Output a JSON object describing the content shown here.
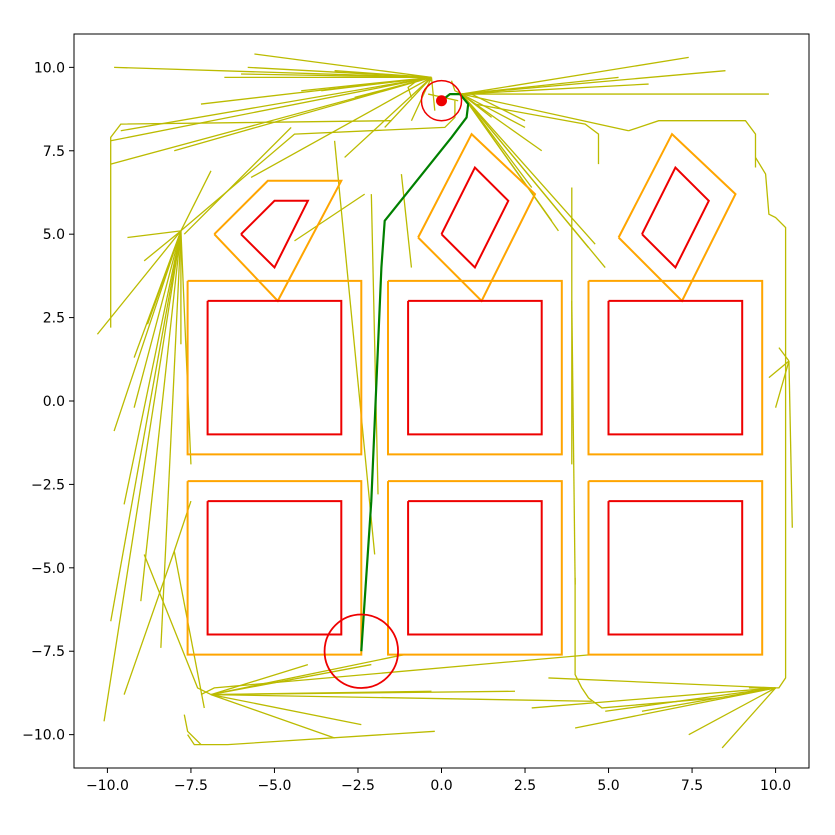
{
  "chart_data": {
    "type": "line",
    "title": "",
    "xlabel": "",
    "ylabel": "",
    "xlim": [
      -11,
      11
    ],
    "ylim": [
      -11,
      11
    ],
    "grid": false,
    "x_ticks": [
      -10,
      -7.5,
      -5,
      -2.5,
      0,
      2.5,
      5,
      7.5,
      10
    ],
    "y_ticks": [
      -10,
      -7.5,
      -5,
      -2.5,
      0,
      2.5,
      5,
      7.5,
      10
    ],
    "x_tick_labels": [
      "−10.0",
      "−7.5",
      "−5.0",
      "−2.5",
      "0.0",
      "2.5",
      "5.0",
      "7.5",
      "10.0"
    ],
    "y_tick_labels": [
      "−10.0",
      "−7.5",
      "−5.0",
      "−2.5",
      "0.0",
      "2.5",
      "5.0",
      "7.5",
      "10.0"
    ],
    "colors": {
      "obstacle": "#ee0000",
      "inflated": "#ffa500",
      "tree": "#bbbb00",
      "path": "#008000",
      "marker": "#ee0000"
    },
    "obstacles": [
      [
        [
          -7,
          3
        ],
        [
          -3,
          3
        ],
        [
          -3,
          -1
        ],
        [
          -7,
          -1
        ],
        [
          -7,
          3
        ]
      ],
      [
        [
          -1,
          3
        ],
        [
          3,
          3
        ],
        [
          3,
          -1
        ],
        [
          -1,
          -1
        ],
        [
          -1,
          3
        ]
      ],
      [
        [
          5,
          3
        ],
        [
          9,
          3
        ],
        [
          9,
          -1
        ],
        [
          5,
          -1
        ],
        [
          5,
          3
        ]
      ],
      [
        [
          -7,
          -3
        ],
        [
          -3,
          -3
        ],
        [
          -3,
          -7
        ],
        [
          -7,
          -7
        ],
        [
          -7,
          -3
        ]
      ],
      [
        [
          -1,
          -3
        ],
        [
          3,
          -3
        ],
        [
          3,
          -7
        ],
        [
          -1,
          -7
        ],
        [
          -1,
          -3
        ]
      ],
      [
        [
          5,
          -3
        ],
        [
          9,
          -3
        ],
        [
          9,
          -7
        ],
        [
          5,
          -7
        ],
        [
          5,
          -3
        ]
      ],
      [
        [
          -6,
          5
        ],
        [
          -5,
          6
        ],
        [
          -4,
          6
        ],
        [
          -5,
          4
        ],
        [
          -6,
          5
        ]
      ],
      [
        [
          0,
          5
        ],
        [
          1,
          7
        ],
        [
          2,
          6
        ],
        [
          1,
          4
        ],
        [
          0,
          5
        ]
      ],
      [
        [
          6,
          5
        ],
        [
          7,
          7
        ],
        [
          8,
          6
        ],
        [
          7,
          4
        ],
        [
          6,
          5
        ]
      ]
    ],
    "inflated_obstacles": [
      [
        [
          -7.6,
          3.6
        ],
        [
          -2.4,
          3.6
        ],
        [
          -2.4,
          -1.6
        ],
        [
          -7.6,
          -1.6
        ],
        [
          -7.6,
          3.6
        ]
      ],
      [
        [
          -1.6,
          3.6
        ],
        [
          3.6,
          3.6
        ],
        [
          3.6,
          -1.6
        ],
        [
          -1.6,
          -1.6
        ],
        [
          -1.6,
          3.6
        ]
      ],
      [
        [
          4.4,
          3.6
        ],
        [
          9.6,
          3.6
        ],
        [
          9.6,
          -1.6
        ],
        [
          4.4,
          -1.6
        ],
        [
          4.4,
          3.6
        ]
      ],
      [
        [
          -7.6,
          -2.4
        ],
        [
          -2.4,
          -2.4
        ],
        [
          -2.4,
          -7.6
        ],
        [
          -7.6,
          -7.6
        ],
        [
          -7.6,
          -2.4
        ]
      ],
      [
        [
          -1.6,
          -2.4
        ],
        [
          3.6,
          -2.4
        ],
        [
          3.6,
          -7.6
        ],
        [
          -1.6,
          -7.6
        ],
        [
          -1.6,
          -2.4
        ]
      ],
      [
        [
          4.4,
          -2.4
        ],
        [
          9.6,
          -2.4
        ],
        [
          9.6,
          -7.6
        ],
        [
          4.4,
          -7.6
        ],
        [
          4.4,
          -2.4
        ]
      ],
      [
        [
          -6.8,
          5
        ],
        [
          -5.2,
          6.6
        ],
        [
          -3,
          6.6
        ],
        [
          -4.9,
          3
        ],
        [
          -6.8,
          5
        ]
      ],
      [
        [
          -0.7,
          4.9
        ],
        [
          0.9,
          8
        ],
        [
          2.8,
          6.2
        ],
        [
          1.2,
          3
        ],
        [
          -0.7,
          4.9
        ]
      ],
      [
        [
          5.3,
          4.9
        ],
        [
          6.9,
          8
        ],
        [
          8.8,
          6.2
        ],
        [
          7.2,
          3
        ],
        [
          5.3,
          4.9
        ]
      ]
    ],
    "start": {
      "x": 0,
      "y": 9,
      "radius": 0.6
    },
    "goal": {
      "x": -2.4,
      "y": -7.5,
      "radius": 1.1
    },
    "path": [
      [
        0,
        9
      ],
      [
        0.25,
        9.2
      ],
      [
        0.55,
        9.2
      ],
      [
        0.8,
        8.9
      ],
      [
        0.75,
        8.5
      ],
      [
        0.3,
        7.9
      ],
      [
        -1.7,
        5.4
      ],
      [
        -1.8,
        4
      ],
      [
        -2.1,
        -3
      ],
      [
        -2.4,
        -7.5
      ]
    ],
    "tree": [
      [
        [
          -0.3,
          9.7
        ],
        [
          -9.8,
          10
        ]
      ],
      [
        [
          -0.3,
          9.7
        ],
        [
          -7.2,
          8.9
        ]
      ],
      [
        [
          -0.3,
          9.7
        ],
        [
          -9.9,
          7.8
        ]
      ],
      [
        [
          -0.3,
          9.7
        ],
        [
          -9.9,
          7.1
        ]
      ],
      [
        [
          -0.3,
          9.7
        ],
        [
          -8,
          7.5
        ]
      ],
      [
        [
          -0.3,
          9.7
        ],
        [
          -5.7,
          6.7
        ]
      ],
      [
        [
          -0.3,
          9.7
        ],
        [
          -2.9,
          7.3
        ]
      ],
      [
        [
          -0.3,
          9.7
        ],
        [
          -0.2,
          8.7
        ]
      ],
      [
        [
          -0.3,
          9.7
        ],
        [
          -5.6,
          10.4
        ]
      ],
      [
        [
          -0.3,
          9.7
        ],
        [
          -6.5,
          9.7
        ]
      ],
      [
        [
          -0.3,
          9.7
        ],
        [
          -6,
          9.8
        ]
      ],
      [
        [
          -0.3,
          9.7
        ],
        [
          -9.6,
          8.1
        ]
      ],
      [
        [
          -0.3,
          9.7
        ],
        [
          -0.9,
          8.4
        ]
      ],
      [
        [
          -0.3,
          9.7
        ],
        [
          -4.2,
          9.3
        ]
      ],
      [
        [
          -0.3,
          9.7
        ],
        [
          -1.7,
          8.2
        ]
      ],
      [
        [
          -0.3,
          9.7
        ],
        [
          -3.6,
          9.3
        ]
      ],
      [
        [
          -0.3,
          9.7
        ],
        [
          -2.6,
          9.1
        ]
      ],
      [
        [
          -0.3,
          9.7
        ],
        [
          -5.8,
          10
        ]
      ],
      [
        [
          -0.3,
          9.7
        ],
        [
          -3.2,
          9.9
        ]
      ],
      [
        [
          0.6,
          9.2
        ],
        [
          7.4,
          10.3
        ]
      ],
      [
        [
          0.6,
          9.2
        ],
        [
          5.3,
          9.7
        ]
      ],
      [
        [
          0.6,
          9.2
        ],
        [
          8.5,
          9.9
        ]
      ],
      [
        [
          0.6,
          9.2
        ],
        [
          9.8,
          9.2
        ]
      ],
      [
        [
          0.6,
          9.2
        ],
        [
          5.6,
          8.1
        ]
      ],
      [
        [
          0.6,
          9.2
        ],
        [
          2.5,
          8.2
        ]
      ],
      [
        [
          0.6,
          9.2
        ],
        [
          2.7,
          6.4
        ]
      ],
      [
        [
          0.6,
          9.2
        ],
        [
          3.3,
          5.4
        ]
      ],
      [
        [
          0.6,
          9.2
        ],
        [
          4.6,
          4.7
        ]
      ],
      [
        [
          0.6,
          9.2
        ],
        [
          4.9,
          4
        ]
      ],
      [
        [
          0.6,
          9.2
        ],
        [
          1.5,
          8.5
        ]
      ],
      [
        [
          0.6,
          9.2
        ],
        [
          3,
          7.5
        ]
      ],
      [
        [
          0.6,
          9.2
        ],
        [
          3.5,
          5.1
        ]
      ],
      [
        [
          0.6,
          9.2
        ],
        [
          4.4,
          4.6
        ]
      ],
      [
        [
          0.6,
          9.2
        ],
        [
          6.2,
          9.5
        ]
      ],
      [
        [
          -7.8,
          5.1
        ],
        [
          -8.9,
          4.2
        ]
      ],
      [
        [
          -7.8,
          5.1
        ],
        [
          -10.3,
          2
        ]
      ],
      [
        [
          -7.8,
          5.1
        ],
        [
          -9.2,
          1.3
        ]
      ],
      [
        [
          -7.8,
          5.1
        ],
        [
          -9.8,
          -0.9
        ]
      ],
      [
        [
          -7.8,
          5.1
        ],
        [
          -9.5,
          -3.1
        ]
      ],
      [
        [
          -7.8,
          5.1
        ],
        [
          -9,
          -6
        ]
      ],
      [
        [
          -7.8,
          5.1
        ],
        [
          -9.9,
          -6.6
        ]
      ],
      [
        [
          -7.8,
          5.1
        ],
        [
          -8.4,
          -7.4
        ]
      ],
      [
        [
          -7.8,
          5.1
        ],
        [
          -7.5,
          -1.9
        ]
      ],
      [
        [
          -7.8,
          5.1
        ],
        [
          -9.2,
          -0.2
        ]
      ],
      [
        [
          -7.8,
          5.1
        ],
        [
          -10.1,
          -9.6
        ]
      ],
      [
        [
          -7.8,
          5.1
        ],
        [
          -7.8,
          1.7
        ]
      ],
      [
        [
          -7.8,
          5.1
        ],
        [
          -6.9,
          6.9
        ]
      ],
      [
        [
          -7.8,
          5.1
        ],
        [
          -9.4,
          4.9
        ]
      ],
      [
        [
          -7.8,
          5.1
        ],
        [
          -8.8,
          2.3
        ]
      ],
      [
        [
          -8,
          -4.5
        ],
        [
          -9.5,
          -8.8
        ]
      ],
      [
        [
          -8,
          -4.5
        ],
        [
          -7.1,
          -9.2
        ]
      ],
      [
        [
          -8,
          -4.5
        ],
        [
          -7.5,
          -3
        ]
      ],
      [
        [
          -6.9,
          -8.8
        ],
        [
          -4,
          -7.9
        ]
      ],
      [
        [
          -6.9,
          -8.8
        ],
        [
          2.2,
          -8.7
        ]
      ],
      [
        [
          -6.9,
          -8.8
        ],
        [
          -2.4,
          -9.7
        ]
      ],
      [
        [
          -6.9,
          -8.8
        ],
        [
          -3.2,
          -10.1
        ]
      ],
      [
        [
          -6.9,
          -8.8
        ],
        [
          4.5,
          -9
        ]
      ],
      [
        [
          -6.9,
          -8.8
        ],
        [
          -1.1,
          -7.6
        ]
      ],
      [
        [
          -6.9,
          -8.8
        ],
        [
          -0.3,
          -8.7
        ]
      ],
      [
        [
          -6.9,
          -8.8
        ],
        [
          -2.1,
          -7.9
        ]
      ],
      [
        [
          10,
          -8.6
        ],
        [
          6,
          -9.3
        ]
      ],
      [
        [
          10,
          -8.6
        ],
        [
          4,
          -9.8
        ]
      ],
      [
        [
          10,
          -8.6
        ],
        [
          2.7,
          -9.2
        ]
      ],
      [
        [
          10,
          -8.6
        ],
        [
          7.4,
          -10
        ]
      ],
      [
        [
          10,
          -8.6
        ],
        [
          8.4,
          -10.4
        ]
      ],
      [
        [
          10,
          -8.6
        ],
        [
          3.2,
          -8.3
        ]
      ],
      [
        [
          10,
          -8.6
        ],
        [
          4.9,
          -9.3
        ]
      ],
      [
        [
          10.4,
          1.2
        ],
        [
          10.5,
          -3.8
        ]
      ],
      [
        [
          10.4,
          1.2
        ],
        [
          10,
          -0.2
        ]
      ],
      [
        [
          10.4,
          1.2
        ],
        [
          9.8,
          0.7
        ]
      ],
      [
        [
          10.4,
          1.2
        ],
        [
          10.1,
          1.6
        ]
      ],
      [
        [
          -3.2,
          7.8
        ],
        [
          -2,
          -4.6
        ]
      ],
      [
        [
          -2.1,
          6.2
        ],
        [
          -1.9,
          -2.8
        ]
      ],
      [
        [
          -1.2,
          6.8
        ],
        [
          -0.9,
          4
        ]
      ],
      [
        [
          3.9,
          6.4
        ],
        [
          3.9,
          -1.9
        ]
      ],
      [
        [
          3.9,
          3
        ],
        [
          4,
          -5.5
        ]
      ],
      [
        [
          0.9,
          9.2
        ],
        [
          2.5,
          8.4
        ]
      ],
      [
        [
          -4.5,
          8.2
        ],
        [
          -7.7,
          5
        ]
      ],
      [
        [
          -2.3,
          6.2
        ],
        [
          -4.4,
          4.8
        ]
      ],
      [
        [
          0.5,
          9
        ],
        [
          -0.4,
          9.2
        ]
      ]
    ],
    "tree_polylines": [
      [
        [
          -9.9,
          2.2
        ],
        [
          -9.9,
          7.9
        ],
        [
          -9.6,
          8.3
        ],
        [
          -1.5,
          8.4
        ]
      ],
      [
        [
          -7.6,
          -10
        ],
        [
          -7.4,
          -10.3
        ],
        [
          -6.8,
          -10.3
        ],
        [
          -6.4,
          -10.3
        ],
        [
          -0.2,
          -9.9
        ]
      ],
      [
        [
          -7.7,
          -9.4
        ],
        [
          -7.6,
          -9.9
        ],
        [
          -7.2,
          -10.3
        ]
      ],
      [
        [
          -7.2,
          -8.8
        ],
        [
          -6.8,
          -8.6
        ],
        [
          4.5,
          -7.6
        ]
      ],
      [
        [
          -6.9,
          -8.8
        ],
        [
          -7.3,
          -8.6
        ],
        [
          -8.9,
          -4.6
        ]
      ],
      [
        [
          -7.8,
          5.1
        ],
        [
          -4.4,
          8.0
        ],
        [
          0.1,
          8.2
        ],
        [
          0.4,
          8.5
        ],
        [
          0.4,
          9.0
        ]
      ],
      [
        [
          1.0,
          8.9
        ],
        [
          4.3,
          8.3
        ],
        [
          4.7,
          8.0
        ],
        [
          4.7,
          7.1
        ]
      ],
      [
        [
          5.6,
          8.1
        ],
        [
          6.5,
          8.4
        ],
        [
          9.1,
          8.4
        ],
        [
          9.4,
          8.0
        ],
        [
          9.4,
          7.0
        ]
      ],
      [
        [
          9.4,
          7.3
        ],
        [
          9.7,
          6.8
        ],
        [
          9.8,
          5.6
        ],
        [
          10.0,
          5.5
        ],
        [
          10.3,
          5.2
        ],
        [
          10.3,
          -8.3
        ],
        [
          10.1,
          -8.6
        ],
        [
          9.2,
          -8.6
        ]
      ],
      [
        [
          4.2,
          -8.6
        ],
        [
          4.4,
          -8.9
        ],
        [
          4.8,
          -9.2
        ],
        [
          8.3,
          -8.9
        ]
      ],
      [
        [
          4.2,
          -8.6
        ],
        [
          4.0,
          -8.2
        ],
        [
          4.0,
          -5.3
        ]
      ],
      [
        [
          -0.9,
          9.1
        ],
        [
          -1.0,
          9.4
        ],
        [
          -0.6,
          9.7
        ],
        [
          -0.3,
          9.6
        ]
      ],
      [
        [
          0.3,
          9.6
        ],
        [
          0.4,
          9.3
        ],
        [
          0.6,
          9.2
        ],
        [
          1.0,
          9.2
        ]
      ]
    ]
  }
}
